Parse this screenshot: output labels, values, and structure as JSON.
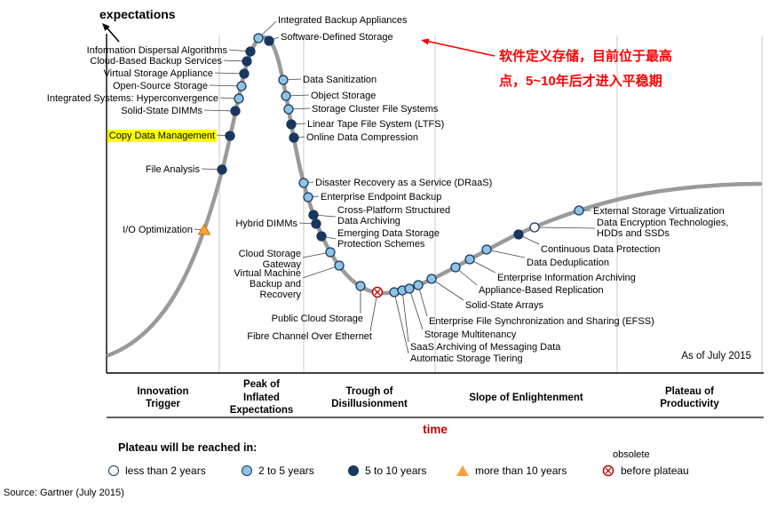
{
  "chart_data": {
    "type": "hype_cycle_scatter",
    "xlabel": "time",
    "ylabel": "expectations",
    "as_of": "As of July 2015",
    "phases": [
      "Innovation\nTrigger",
      "Peak of\nInflated\nExpectations",
      "Trough of\nDisillusionment",
      "Slope of Enlightenment",
      "Plateau of\nProductivity"
    ],
    "points": [
      {
        "label": "I/O Optimization",
        "maturity": "more_than_10_years",
        "dot": [
          230,
          259
        ],
        "anchor": "end",
        "lpos": [
          217,
          262
        ],
        "attach": [
          219,
          258
        ]
      },
      {
        "label": "File Analysis",
        "maturity": "5_to_10_years",
        "dot": [
          250,
          191
        ],
        "anchor": "end",
        "lpos": [
          225,
          194
        ],
        "attach": [
          227,
          190
        ]
      },
      {
        "label": "Copy Data Management",
        "maturity": "5_to_10_years",
        "highlight": true,
        "dot": [
          259,
          153
        ],
        "anchor": "end",
        "lpos": [
          242,
          156
        ],
        "attach": [
          244,
          152
        ]
      },
      {
        "label": "Solid-State DIMMs",
        "maturity": "5_to_10_years",
        "dot": [
          265,
          125
        ],
        "anchor": "end",
        "lpos": [
          228,
          128
        ],
        "attach": [
          230,
          124
        ]
      },
      {
        "label": "Integrated Systems: Hyperconvergence",
        "maturity": "2_to_5_years",
        "dot": [
          269,
          111
        ],
        "anchor": "end",
        "lpos": [
          246,
          114
        ],
        "attach": [
          248,
          110
        ]
      },
      {
        "label": "Open-Source Storage",
        "maturity": "2_to_5_years",
        "dot": [
          272,
          97
        ],
        "anchor": "end",
        "lpos": [
          234,
          100
        ],
        "attach": [
          236,
          96
        ]
      },
      {
        "label": "Virtual Storage Appliance",
        "maturity": "5_to_10_years",
        "dot": [
          275,
          83
        ],
        "anchor": "end",
        "lpos": [
          240,
          86
        ],
        "attach": [
          242,
          82
        ]
      },
      {
        "label": "Cloud-Based Backup Services",
        "maturity": "5_to_10_years",
        "dot": [
          278,
          69
        ],
        "anchor": "end",
        "lpos": [
          250,
          72
        ],
        "attach": [
          252,
          68
        ]
      },
      {
        "label": "Information Dispersal Algorithms",
        "maturity": "5_to_10_years",
        "dot": [
          282,
          58
        ],
        "anchor": "end",
        "lpos": [
          256,
          60
        ],
        "attach": [
          258,
          56
        ]
      },
      {
        "label": "Integrated Backup Appliances",
        "maturity": "2_to_5_years",
        "dot": [
          291,
          43
        ],
        "anchor": "start",
        "lpos": [
          313,
          26
        ],
        "attach": [
          311,
          24
        ]
      },
      {
        "label": "Software-Defined Storage",
        "maturity": "5_to_10_years",
        "dot": [
          303,
          46
        ],
        "anchor": "start",
        "lpos": [
          316,
          45
        ],
        "attach": [
          314,
          42
        ]
      },
      {
        "label": "Data Sanitization",
        "maturity": "2_to_5_years",
        "dot": [
          319,
          90
        ],
        "anchor": "start",
        "lpos": [
          341,
          93
        ],
        "attach": [
          339,
          89
        ]
      },
      {
        "label": "Object Storage",
        "maturity": "2_to_5_years",
        "dot": [
          322,
          108
        ],
        "anchor": "start",
        "lpos": [
          350,
          111
        ],
        "attach": [
          348,
          107
        ]
      },
      {
        "label": "Storage Cluster File Systems",
        "maturity": "2_to_5_years",
        "dot": [
          325,
          123
        ],
        "anchor": "start",
        "lpos": [
          351,
          126
        ],
        "attach": [
          349,
          122
        ]
      },
      {
        "label": "Linear Tape File System (LTFS)",
        "maturity": "5_to_10_years",
        "dot": [
          328,
          140
        ],
        "anchor": "start",
        "lpos": [
          346,
          143
        ],
        "attach": [
          344,
          139
        ]
      },
      {
        "label": "Online Data Compression",
        "maturity": "5_to_10_years",
        "dot": [
          331,
          155
        ],
        "anchor": "start",
        "lpos": [
          345,
          158
        ],
        "attach": [
          343,
          154
        ]
      },
      {
        "label": "Disaster Recovery as a Service (DRaaS)",
        "maturity": "2_to_5_years",
        "dot": [
          342,
          206
        ],
        "anchor": "start",
        "lpos": [
          355,
          209
        ],
        "attach": [
          353,
          205
        ]
      },
      {
        "label": "Enterprise Endpoint Backup",
        "maturity": "2_to_5_years",
        "dot": [
          347,
          222
        ],
        "anchor": "start",
        "lpos": [
          361,
          225
        ],
        "attach": [
          359,
          221
        ]
      },
      {
        "label": "Cross-Platform Structured\nData Archiving",
        "maturity": "5_to_10_years",
        "dot": [
          353,
          242
        ],
        "anchor": "start",
        "lpos": [
          380,
          240
        ],
        "attach": [
          378,
          244
        ]
      },
      {
        "label": "Hybrid DIMMs",
        "maturity": "5_to_10_years",
        "dot": [
          356,
          252
        ],
        "anchor": "end",
        "lpos": [
          335,
          255
        ],
        "attach": [
          337,
          251
        ]
      },
      {
        "label": "Emerging Data Storage\nProtection Schemes",
        "maturity": "5_to_10_years",
        "dot": [
          362,
          266
        ],
        "anchor": "start",
        "lpos": [
          380,
          266
        ],
        "attach": [
          378,
          269
        ]
      },
      {
        "label": "Cloud Storage\nGateway",
        "maturity": "2_to_5_years",
        "dot": [
          372,
          284
        ],
        "anchor": "end",
        "lpos": [
          339,
          289
        ],
        "attach": [
          341,
          290
        ]
      },
      {
        "label": "Virtual Machine\nBackup and\nRecovery",
        "maturity": "2_to_5_years",
        "dot": [
          382,
          299
        ],
        "anchor": "end",
        "lpos": [
          339,
          311
        ],
        "attach": [
          341,
          313
        ]
      },
      {
        "label": "Public Cloud Storage",
        "maturity": "2_to_5_years",
        "dot": [
          406,
          322
        ],
        "anchor": "end",
        "lpos": [
          409,
          362
        ],
        "attach": [
          406,
          353
        ]
      },
      {
        "label": "Fibre Channel Over Ethernet",
        "maturity": "obsolete_before_plateau",
        "dot": [
          425,
          329
        ],
        "anchor": "end",
        "lpos": [
          419,
          382
        ],
        "attach": [
          417,
          373
        ]
      },
      {
        "label": "Automatic Storage Tiering",
        "maturity": "2_to_5_years",
        "dot": [
          444,
          329
        ],
        "anchor": "start",
        "lpos": [
          462,
          407
        ],
        "attach": [
          460,
          398
        ]
      },
      {
        "label": "SaaS Archiving of Messaging Data",
        "maturity": "2_to_5_years",
        "dot": [
          453,
          327
        ],
        "anchor": "start",
        "lpos": [
          462,
          394
        ],
        "attach": [
          460,
          385
        ]
      },
      {
        "label": "Storage Multitenancy",
        "maturity": "2_to_5_years",
        "dot": [
          461,
          325
        ],
        "anchor": "start",
        "lpos": [
          478,
          380
        ],
        "attach": [
          476,
          371
        ]
      },
      {
        "label": "Enterprise File Synchronization and Sharing (EFSS)",
        "maturity": "2_to_5_years",
        "dot": [
          471,
          321
        ],
        "anchor": "start",
        "lpos": [
          483,
          365
        ],
        "attach": [
          481,
          356
        ]
      },
      {
        "label": "Solid-State Arrays",
        "maturity": "2_to_5_years",
        "dot": [
          486,
          314
        ],
        "anchor": "start",
        "lpos": [
          524,
          347
        ],
        "attach": [
          522,
          338
        ]
      },
      {
        "label": "Appliance-Based Replication",
        "maturity": "2_to_5_years",
        "dot": [
          513,
          301
        ],
        "anchor": "start",
        "lpos": [
          539,
          330
        ],
        "attach": [
          537,
          321
        ]
      },
      {
        "label": "Enterprise Information Archiving",
        "maturity": "2_to_5_years",
        "dot": [
          529,
          292
        ],
        "anchor": "start",
        "lpos": [
          560,
          316
        ],
        "attach": [
          558,
          307
        ]
      },
      {
        "label": "Data Deduplication",
        "maturity": "2_to_5_years",
        "dot": [
          548,
          281
        ],
        "anchor": "start",
        "lpos": [
          593,
          299
        ],
        "attach": [
          591,
          290
        ]
      },
      {
        "label": "Continuous Data Protection",
        "maturity": "5_to_10_years",
        "dot": [
          584,
          264
        ],
        "anchor": "start",
        "lpos": [
          609,
          284
        ],
        "attach": [
          607,
          275
        ]
      },
      {
        "label": "Data Encryption Technologies,\nHDDs and SSDs",
        "maturity": "less_than_2_years",
        "dot": [
          602,
          256
        ],
        "anchor": "start",
        "lpos": [
          672,
          254
        ],
        "attach": [
          670,
          257
        ]
      },
      {
        "label": "External Storage Virtualization",
        "maturity": "2_to_5_years",
        "dot": [
          652,
          237
        ],
        "anchor": "start",
        "lpos": [
          668,
          241
        ],
        "attach": [
          666,
          237
        ]
      }
    ]
  },
  "legend": {
    "title": "Plateau will be reached in:",
    "items": [
      {
        "maturity": "less_than_2_years",
        "label": "less than 2 years"
      },
      {
        "maturity": "2_to_5_years",
        "label": "2 to 5 years"
      },
      {
        "maturity": "5_to_10_years",
        "label": "5 to 10 years"
      },
      {
        "maturity": "more_than_10_years",
        "label": "more than 10 years"
      },
      {
        "maturity": "obsolete_before_plateau",
        "label": "before plateau",
        "suplabel": "obsolete"
      }
    ]
  },
  "annotation": {
    "text": "软件定义存储，目前位于最高\n点，5~10年后才进入平稳期",
    "color": "#FF0000"
  },
  "source": "Source: Gartner (July 2015)",
  "colors": {
    "dot_stroke": "#17375E",
    "less_than_2_fill": "#FFFFFF",
    "two_to_five_fill": "#8EC3E6",
    "five_to_ten_fill": "#17375E",
    "more_than_10_fill": "#F9A13A",
    "more_than_10_stroke": "#C87414",
    "obsolete_red": "#C00000",
    "annotation_red": "#FF0000",
    "highlight_yellow": "#FFFF00",
    "curve_gray": "#9A9A9A",
    "time_label_red": "#C00000"
  }
}
